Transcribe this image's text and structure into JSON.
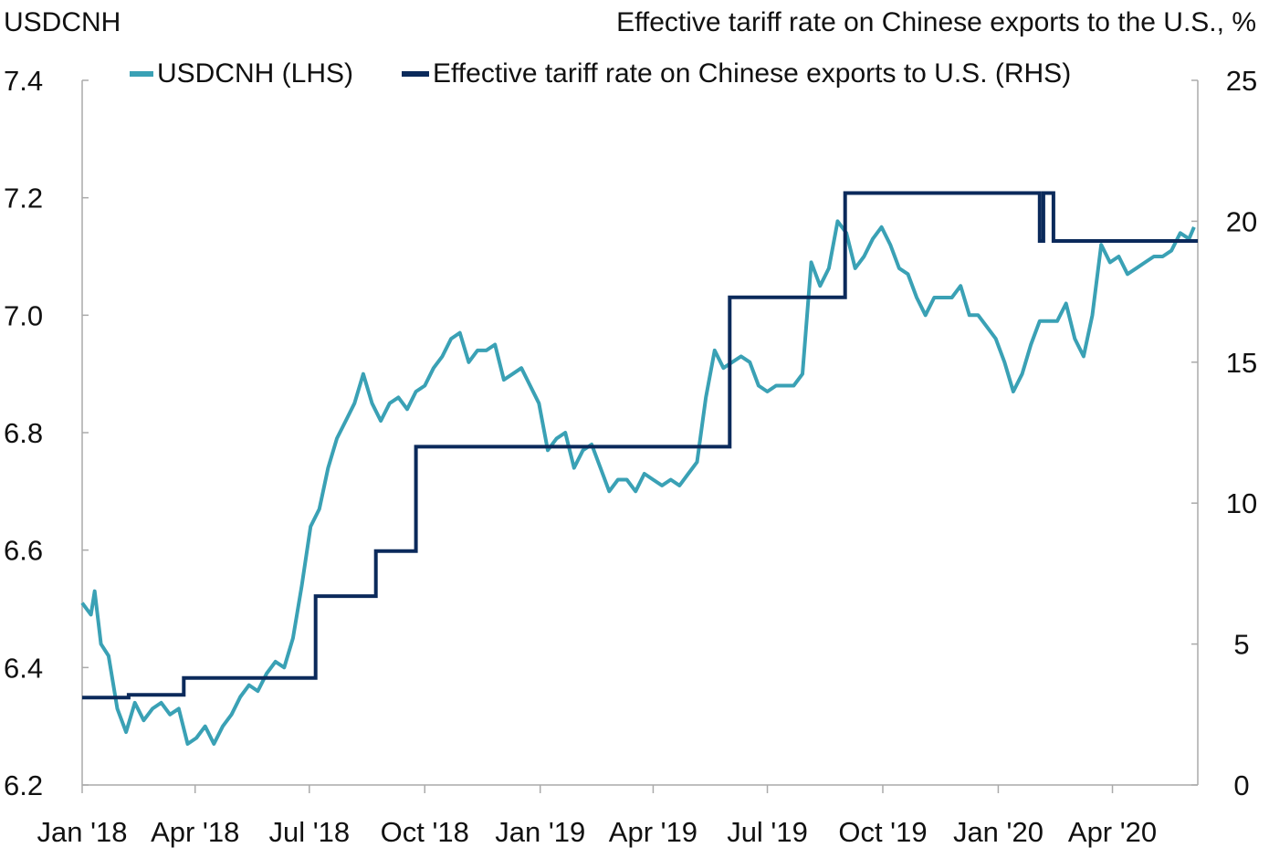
{
  "labels": {
    "left_axis_title": "USDCNH",
    "right_axis_title": "Effective tariff rate on Chinese exports to the U.S., %"
  },
  "legend": [
    {
      "name": "USDCNH (LHS)",
      "color": "#3aa1b5"
    },
    {
      "name": "Effective tariff rate on Chinese exports to U.S. (RHS)",
      "color": "#0b2a5b"
    }
  ],
  "colors": {
    "usdcnh": "#3aa1b5",
    "tariff": "#0b2a5b",
    "axis": "#aaaaaa"
  },
  "chart_data": {
    "type": "line",
    "x_axis": {
      "type": "date",
      "range": [
        "2018-01-01",
        "2020-06-08"
      ],
      "ticks": [
        {
          "date": "2018-01-01",
          "label": "Jan '18"
        },
        {
          "date": "2018-04-01",
          "label": "Apr '18"
        },
        {
          "date": "2018-07-01",
          "label": "Jul '18"
        },
        {
          "date": "2018-10-01",
          "label": "Oct '18"
        },
        {
          "date": "2019-01-01",
          "label": "Jan '19"
        },
        {
          "date": "2019-04-01",
          "label": "Apr '19"
        },
        {
          "date": "2019-07-01",
          "label": "Jul '19"
        },
        {
          "date": "2019-10-01",
          "label": "Oct '19"
        },
        {
          "date": "2020-01-01",
          "label": "Jan '20"
        },
        {
          "date": "2020-04-01",
          "label": "Apr '20"
        }
      ]
    },
    "y_left": {
      "title": "USDCNH",
      "range": [
        6.2,
        7.4
      ],
      "ticks": [
        "6.2",
        "6.4",
        "6.6",
        "6.8",
        "7.0",
        "7.2",
        "7.4"
      ]
    },
    "y_right": {
      "title": "Effective tariff rate on Chinese exports to the U.S., %",
      "range": [
        0,
        25
      ],
      "ticks": [
        "0",
        "5",
        "10",
        "15",
        "20",
        "25"
      ]
    },
    "grid": false,
    "legend_position": "top",
    "series": [
      {
        "name": "USDCNH (LHS)",
        "axis": "left",
        "points": [
          [
            "2018-01-01",
            6.51
          ],
          [
            "2018-01-08",
            6.49
          ],
          [
            "2018-01-11",
            6.53
          ],
          [
            "2018-01-16",
            6.44
          ],
          [
            "2018-01-22",
            6.42
          ],
          [
            "2018-01-29",
            6.33
          ],
          [
            "2018-02-05",
            6.29
          ],
          [
            "2018-02-12",
            6.34
          ],
          [
            "2018-02-19",
            6.31
          ],
          [
            "2018-02-26",
            6.33
          ],
          [
            "2018-03-05",
            6.34
          ],
          [
            "2018-03-12",
            6.32
          ],
          [
            "2018-03-19",
            6.33
          ],
          [
            "2018-03-26",
            6.27
          ],
          [
            "2018-04-02",
            6.28
          ],
          [
            "2018-04-09",
            6.3
          ],
          [
            "2018-04-16",
            6.27
          ],
          [
            "2018-04-23",
            6.3
          ],
          [
            "2018-04-30",
            6.32
          ],
          [
            "2018-05-07",
            6.35
          ],
          [
            "2018-05-14",
            6.37
          ],
          [
            "2018-05-21",
            6.36
          ],
          [
            "2018-05-28",
            6.39
          ],
          [
            "2018-06-04",
            6.41
          ],
          [
            "2018-06-11",
            6.4
          ],
          [
            "2018-06-18",
            6.45
          ],
          [
            "2018-06-25",
            6.54
          ],
          [
            "2018-07-02",
            6.64
          ],
          [
            "2018-07-09",
            6.67
          ],
          [
            "2018-07-16",
            6.74
          ],
          [
            "2018-07-23",
            6.79
          ],
          [
            "2018-07-30",
            6.82
          ],
          [
            "2018-08-06",
            6.85
          ],
          [
            "2018-08-13",
            6.9
          ],
          [
            "2018-08-20",
            6.85
          ],
          [
            "2018-08-27",
            6.82
          ],
          [
            "2018-09-03",
            6.85
          ],
          [
            "2018-09-10",
            6.86
          ],
          [
            "2018-09-17",
            6.84
          ],
          [
            "2018-09-24",
            6.87
          ],
          [
            "2018-10-01",
            6.88
          ],
          [
            "2018-10-08",
            6.91
          ],
          [
            "2018-10-15",
            6.93
          ],
          [
            "2018-10-22",
            6.96
          ],
          [
            "2018-10-29",
            6.97
          ],
          [
            "2018-11-05",
            6.92
          ],
          [
            "2018-11-12",
            6.94
          ],
          [
            "2018-11-19",
            6.94
          ],
          [
            "2018-11-26",
            6.95
          ],
          [
            "2018-12-03",
            6.89
          ],
          [
            "2018-12-10",
            6.9
          ],
          [
            "2018-12-17",
            6.91
          ],
          [
            "2018-12-24",
            6.88
          ],
          [
            "2018-12-31",
            6.85
          ],
          [
            "2019-01-07",
            6.77
          ],
          [
            "2019-01-14",
            6.79
          ],
          [
            "2019-01-21",
            6.8
          ],
          [
            "2019-01-28",
            6.74
          ],
          [
            "2019-02-04",
            6.77
          ],
          [
            "2019-02-11",
            6.78
          ],
          [
            "2019-02-18",
            6.74
          ],
          [
            "2019-02-25",
            6.7
          ],
          [
            "2019-03-04",
            6.72
          ],
          [
            "2019-03-11",
            6.72
          ],
          [
            "2019-03-18",
            6.7
          ],
          [
            "2019-03-25",
            6.73
          ],
          [
            "2019-04-01",
            6.72
          ],
          [
            "2019-04-08",
            6.71
          ],
          [
            "2019-04-15",
            6.72
          ],
          [
            "2019-04-22",
            6.71
          ],
          [
            "2019-04-29",
            6.73
          ],
          [
            "2019-05-06",
            6.75
          ],
          [
            "2019-05-13",
            6.86
          ],
          [
            "2019-05-20",
            6.94
          ],
          [
            "2019-05-27",
            6.91
          ],
          [
            "2019-06-03",
            6.92
          ],
          [
            "2019-06-10",
            6.93
          ],
          [
            "2019-06-17",
            6.92
          ],
          [
            "2019-06-24",
            6.88
          ],
          [
            "2019-07-01",
            6.87
          ],
          [
            "2019-07-08",
            6.88
          ],
          [
            "2019-07-15",
            6.88
          ],
          [
            "2019-07-22",
            6.88
          ],
          [
            "2019-07-29",
            6.9
          ],
          [
            "2019-08-05",
            7.09
          ],
          [
            "2019-08-12",
            7.05
          ],
          [
            "2019-08-19",
            7.08
          ],
          [
            "2019-08-26",
            7.16
          ],
          [
            "2019-09-02",
            7.14
          ],
          [
            "2019-09-09",
            7.08
          ],
          [
            "2019-09-16",
            7.1
          ],
          [
            "2019-09-23",
            7.13
          ],
          [
            "2019-09-30",
            7.15
          ],
          [
            "2019-10-07",
            7.12
          ],
          [
            "2019-10-14",
            7.08
          ],
          [
            "2019-10-21",
            7.07
          ],
          [
            "2019-10-28",
            7.03
          ],
          [
            "2019-11-04",
            7.0
          ],
          [
            "2019-11-11",
            7.03
          ],
          [
            "2019-11-18",
            7.03
          ],
          [
            "2019-11-25",
            7.03
          ],
          [
            "2019-12-02",
            7.05
          ],
          [
            "2019-12-09",
            7.0
          ],
          [
            "2019-12-16",
            7.0
          ],
          [
            "2019-12-23",
            6.98
          ],
          [
            "2019-12-30",
            6.96
          ],
          [
            "2020-01-06",
            6.92
          ],
          [
            "2020-01-13",
            6.87
          ],
          [
            "2020-01-20",
            6.9
          ],
          [
            "2020-01-27",
            6.95
          ],
          [
            "2020-02-03",
            6.99
          ],
          [
            "2020-02-10",
            6.99
          ],
          [
            "2020-02-17",
            6.99
          ],
          [
            "2020-02-24",
            7.02
          ],
          [
            "2020-03-02",
            6.96
          ],
          [
            "2020-03-09",
            6.93
          ],
          [
            "2020-03-16",
            7.0
          ],
          [
            "2020-03-23",
            7.12
          ],
          [
            "2020-03-30",
            7.09
          ],
          [
            "2020-04-06",
            7.1
          ],
          [
            "2020-04-13",
            7.07
          ],
          [
            "2020-04-20",
            7.08
          ],
          [
            "2020-04-27",
            7.09
          ],
          [
            "2020-05-04",
            7.1
          ],
          [
            "2020-05-11",
            7.1
          ],
          [
            "2020-05-18",
            7.11
          ],
          [
            "2020-05-25",
            7.14
          ],
          [
            "2020-06-01",
            7.13
          ],
          [
            "2020-06-05",
            7.15
          ]
        ]
      },
      {
        "name": "Effective tariff rate on Chinese exports to U.S. (RHS)",
        "axis": "right",
        "step": true,
        "points": [
          [
            "2018-01-01",
            3.1
          ],
          [
            "2018-02-07",
            3.2
          ],
          [
            "2018-03-23",
            3.8
          ],
          [
            "2018-07-06",
            6.7
          ],
          [
            "2018-08-23",
            8.3
          ],
          [
            "2018-09-24",
            12.0
          ],
          [
            "2019-06-01",
            17.3
          ],
          [
            "2019-09-01",
            21.0
          ],
          [
            "2020-02-03",
            19.3
          ],
          [
            "2020-02-06",
            21.0
          ],
          [
            "2020-02-14",
            19.3
          ],
          [
            "2020-06-08",
            19.3
          ]
        ]
      }
    ]
  }
}
